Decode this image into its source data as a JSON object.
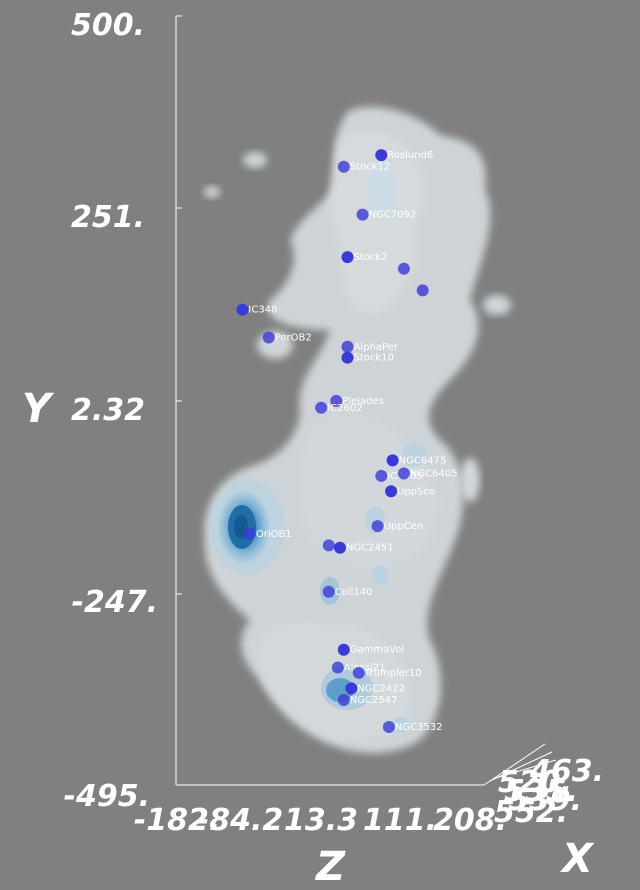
{
  "chart_data": {
    "type": "scatter",
    "title": "",
    "y_axis": {
      "label": "Y",
      "ticks": [
        "500.",
        "251.",
        "2.32",
        "-247.",
        "-495."
      ],
      "range": [
        -495,
        500
      ]
    },
    "z_axis": {
      "label": "Z",
      "ticks": [
        "-182.",
        "-84.2",
        "13.3",
        "111.",
        "208."
      ],
      "range": [
        -182,
        208
      ]
    },
    "x_axis": {
      "label": "X",
      "ticks": [
        "463.",
        "520.",
        "535.",
        "539.",
        "552."
      ]
    },
    "series_color": "#3a3ad8",
    "dust_color": "#dfe9ef",
    "core_color": "#2a7fb8",
    "clusters": [
      {
        "label": "Roslund6",
        "z": 90,
        "y": 320
      },
      {
        "label": "Stock12",
        "z": 40,
        "y": 305
      },
      {
        "label": "NGC7092",
        "z": 65,
        "y": 243
      },
      {
        "label": "Stock2",
        "z": 45,
        "y": 188
      },
      {
        "label": "",
        "z": 120,
        "y": 173
      },
      {
        "label": "",
        "z": 145,
        "y": 145
      },
      {
        "label": "IC348",
        "z": -95,
        "y": 120
      },
      {
        "label": "PerOB2",
        "z": -60,
        "y": 84
      },
      {
        "label": "AlphaPer",
        "z": 45,
        "y": 72
      },
      {
        "label": "Stock10",
        "z": 45,
        "y": 58
      },
      {
        "label": "Pleiades",
        "z": 30,
        "y": 2
      },
      {
        "label": "IC2602",
        "z": 10,
        "y": -7
      },
      {
        "label": "NGC6475",
        "z": 105,
        "y": -75
      },
      {
        "label": "IC4665",
        "z": 90,
        "y": -95
      },
      {
        "label": "NGC6405",
        "z": 120,
        "y": -92
      },
      {
        "label": "UppSco",
        "z": 103,
        "y": -115
      },
      {
        "label": "UppCen",
        "z": 85,
        "y": -160
      },
      {
        "label": "OriOB1",
        "z": -85,
        "y": -170
      },
      {
        "label": "NGC2451",
        "z": 35,
        "y": -188
      },
      {
        "label": "",
        "z": 20,
        "y": -185
      },
      {
        "label": "Coll140",
        "z": 20,
        "y": -245
      },
      {
        "label": "GammaVel",
        "z": 40,
        "y": -320
      },
      {
        "label": "Alessi21",
        "z": 32,
        "y": -343
      },
      {
        "label": "Trumpler10",
        "z": 60,
        "y": -350
      },
      {
        "label": "NGC2422",
        "z": 50,
        "y": -370
      },
      {
        "label": "NGC2547",
        "z": 40,
        "y": -385
      },
      {
        "label": "NGC3532",
        "z": 100,
        "y": -420
      }
    ]
  }
}
